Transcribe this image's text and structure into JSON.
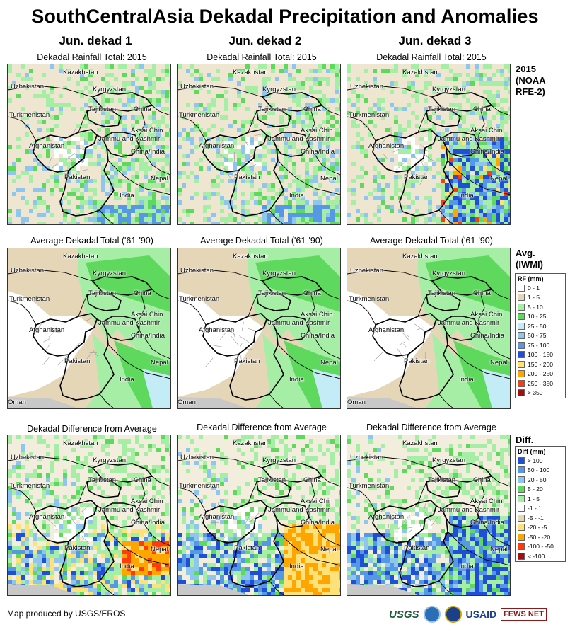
{
  "title": "SouthCentralAsia Dekadal Precipitation and Anomalies",
  "columns": [
    "Jun. dekad 1",
    "Jun. dekad 2",
    "Jun. dekad 3"
  ],
  "row_titles": {
    "rainfall": "Dekadal Rainfall Total: 2015",
    "average": "Average Dekadal Total ('61-'90)",
    "difference": "Dekadal Difference from Average"
  },
  "map_labels": {
    "kazakhstan": "Kazakhstan",
    "uzbekistan": "Uzbekistan",
    "kyrgyzstan": "Kyrgyzstan",
    "turkmenistan": "Turkmenistan",
    "tajikistan": "Tajikistan",
    "china": "China",
    "aksai_chin": "Aksai Chin",
    "jammu_kashmir": "Jammu and Kashmir",
    "china_india": "China/India",
    "afghanistan": "Afghanistan",
    "pakistan": "Pakistan",
    "nepal": "Nepal",
    "india": "India",
    "oman": "Oman"
  },
  "side": {
    "rfe_title": "2015 (NOAA RFE-2)",
    "avg_title": "Avg. (IWMI)",
    "diff_title": "Diff."
  },
  "legend_rf": {
    "title": "RF (mm)",
    "items": [
      {
        "label": "0 - 1",
        "color": "#ffffff"
      },
      {
        "label": "1 - 5",
        "color": "#e6d6b8"
      },
      {
        "label": "5 - 10",
        "color": "#a6eea6"
      },
      {
        "label": "10 - 25",
        "color": "#5ed95e"
      },
      {
        "label": "25 - 50",
        "color": "#c4ecf7"
      },
      {
        "label": "50 - 75",
        "color": "#8ec6ee"
      },
      {
        "label": "75 - 100",
        "color": "#5598e6"
      },
      {
        "label": "100 - 150",
        "color": "#1f4fd6"
      },
      {
        "label": "150 - 200",
        "color": "#ffe17a"
      },
      {
        "label": "200 - 250",
        "color": "#ffa500"
      },
      {
        "label": "250 - 350",
        "color": "#ff3b0a"
      },
      {
        "label": "> 350",
        "color": "#a01010"
      }
    ]
  },
  "legend_diff": {
    "title": "Diff (mm)",
    "items": [
      {
        "label": "> 100",
        "color": "#1f4fd6"
      },
      {
        "label": "50 - 100",
        "color": "#5598e6"
      },
      {
        "label": "20 - 50",
        "color": "#8ec6ee"
      },
      {
        "label": "5 - 20",
        "color": "#5ed95e"
      },
      {
        "label": "1 - 5",
        "color": "#a6eea6"
      },
      {
        "label": "-1 - 1",
        "color": "#ffffff"
      },
      {
        "label": "-5 - -1",
        "color": "#e6d6b8"
      },
      {
        "label": "-20 - -5",
        "color": "#ffe17a"
      },
      {
        "label": "-50 - -20",
        "color": "#ffa500"
      },
      {
        "label": "-100 - -50",
        "color": "#ff3b0a"
      },
      {
        "label": "< -100",
        "color": "#a01010"
      }
    ]
  },
  "footer": {
    "credit": "Map produced by USGS/EROS",
    "logos": [
      "USGS",
      "NOAA",
      "USAID",
      "FEWS NET"
    ]
  }
}
